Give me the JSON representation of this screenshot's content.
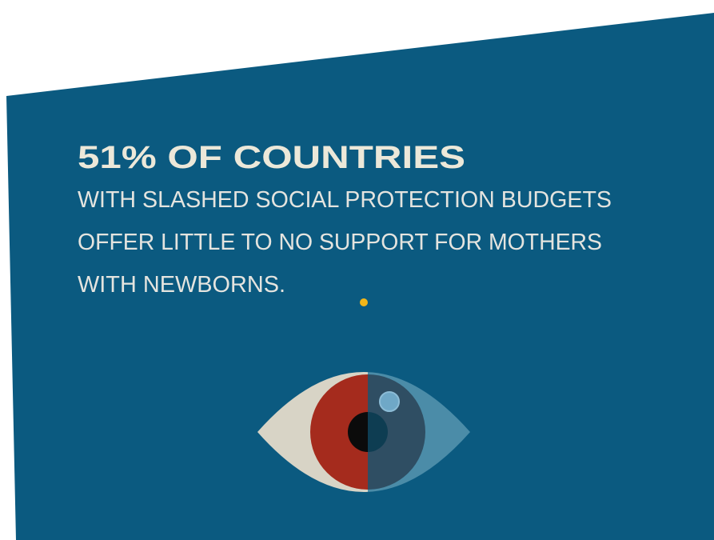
{
  "headline": "51% OF COUNTRIES",
  "body": [
    "WITH SLASHED SOCIAL PROTECTION BUDGETS",
    "OFFER LITTLE TO NO SUPPORT FOR MOTHERS",
    "WITH NEWBORNS."
  ]
}
